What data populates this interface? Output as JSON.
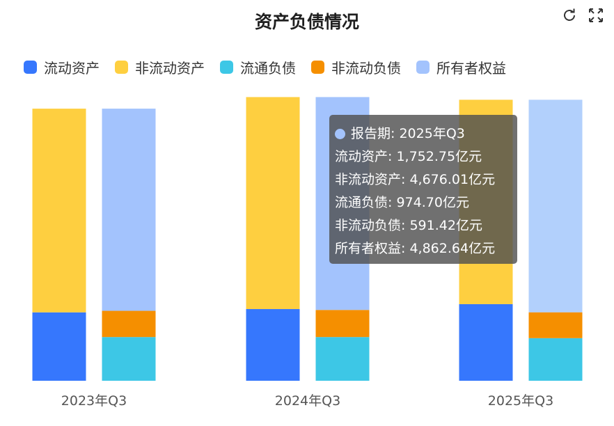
{
  "colors": {
    "current_assets": "#3677fd",
    "noncurrent_assets": "#fecf40",
    "current_liab": "#3dc7e6",
    "noncurrent_liab": "#f58f00",
    "equity": "#a3c3fd"
  },
  "toolbar": {
    "refresh_icon": "refresh-icon",
    "fullscreen_icon": "fullscreen-icon"
  },
  "chart_data": {
    "type": "bar",
    "title": "资产负债情况",
    "categories": [
      "2023年Q3",
      "2024年Q3",
      "2025年Q3"
    ],
    "stacks": [
      {
        "stack": "assets",
        "series": [
          {
            "name": "流动资产",
            "values": [
              1565,
              1640,
              1752.75
            ]
          },
          {
            "name": "非流动资产",
            "values": [
              4660,
              4850,
              4676.01
            ]
          }
        ]
      },
      {
        "stack": "liabilities_equity",
        "series": [
          {
            "name": "流通负债",
            "values": [
              1000,
              1000,
              974.7
            ]
          },
          {
            "name": "非流动负债",
            "values": [
              600,
              620,
              591.42
            ]
          },
          {
            "name": "所有者权益",
            "values": [
              4625,
              4870,
              4862.64
            ]
          }
        ]
      }
    ],
    "legend_position": "top-left",
    "grid": false,
    "ylim": [
      0,
      6800
    ]
  },
  "tooltip": {
    "period_label": "报告期",
    "period": "2025年Q3",
    "unit": "亿元",
    "rows": [
      {
        "label": "流动资产",
        "value": "1,752.75"
      },
      {
        "label": "非流动资产",
        "value": "4,676.01"
      },
      {
        "label": "流通负债",
        "value": "974.70"
      },
      {
        "label": "非流动负债",
        "value": "591.42"
      },
      {
        "label": "所有者权益",
        "value": "4,862.64"
      }
    ]
  }
}
